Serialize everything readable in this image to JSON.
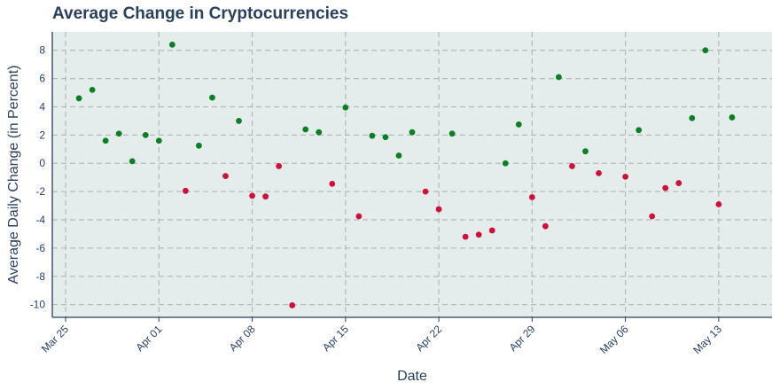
{
  "chart_data": {
    "type": "scatter",
    "title": "Average Change in Cryptocurrencies",
    "xlabel": "Date",
    "ylabel": "Average Daily Change (in Percent)",
    "x_tick_labels": [
      "Mar 25",
      "Apr 01",
      "Apr 08",
      "Apr 15",
      "Apr 22",
      "Apr 29",
      "May 06",
      "May 13"
    ],
    "y_tick_labels": [
      "-10",
      "-8",
      "-6",
      "-4",
      "-2",
      "0",
      "2",
      "4",
      "6",
      "8"
    ],
    "xlim": [
      "2024-03-24",
      "2024-05-17"
    ],
    "ylim": [
      -10.9,
      9.3
    ],
    "grid": true,
    "colors": {
      "positive": "#0a7f23",
      "negative": "#d0103a",
      "plot_bg": "#e5ecec",
      "grid": "#b5b9bb",
      "axis": "#2a3f5f"
    },
    "series": [
      {
        "x": [
          "2024-03-26",
          "2024-03-27",
          "2024-03-28",
          "2024-03-29",
          "2024-03-30",
          "2024-03-31",
          "2024-04-01",
          "2024-04-02",
          "2024-04-03",
          "2024-04-04",
          "2024-04-05",
          "2024-04-06",
          "2024-04-07",
          "2024-04-08",
          "2024-04-09",
          "2024-04-10",
          "2024-04-11",
          "2024-04-12",
          "2024-04-13",
          "2024-04-14",
          "2024-04-15",
          "2024-04-16",
          "2024-04-17",
          "2024-04-18",
          "2024-04-19",
          "2024-04-20",
          "2024-04-21",
          "2024-04-22",
          "2024-04-23",
          "2024-04-24",
          "2024-04-25",
          "2024-04-26",
          "2024-04-27",
          "2024-04-28",
          "2024-04-29",
          "2024-04-30",
          "2024-05-01",
          "2024-05-02",
          "2024-05-03",
          "2024-05-04",
          "2024-05-06",
          "2024-05-07",
          "2024-05-08",
          "2024-05-09",
          "2024-05-10",
          "2024-05-11",
          "2024-05-12",
          "2024-05-13",
          "2024-05-14"
        ],
        "y": [
          4.6,
          5.2,
          1.6,
          2.1,
          0.15,
          2.0,
          1.6,
          8.4,
          -1.95,
          1.25,
          4.65,
          -0.9,
          3.0,
          -2.3,
          -2.35,
          -0.2,
          -10.05,
          2.4,
          2.2,
          -1.45,
          3.95,
          -3.75,
          1.95,
          1.85,
          0.55,
          2.2,
          -2.0,
          -3.25,
          2.1,
          -5.2,
          -5.05,
          -4.75,
          0.0,
          2.75,
          -2.4,
          -4.45,
          6.1,
          -0.2,
          0.85,
          -0.7,
          -0.95,
          2.35,
          -3.75,
          -1.75,
          -1.4,
          3.2,
          8.0,
          -2.9,
          3.25
        ]
      }
    ]
  }
}
